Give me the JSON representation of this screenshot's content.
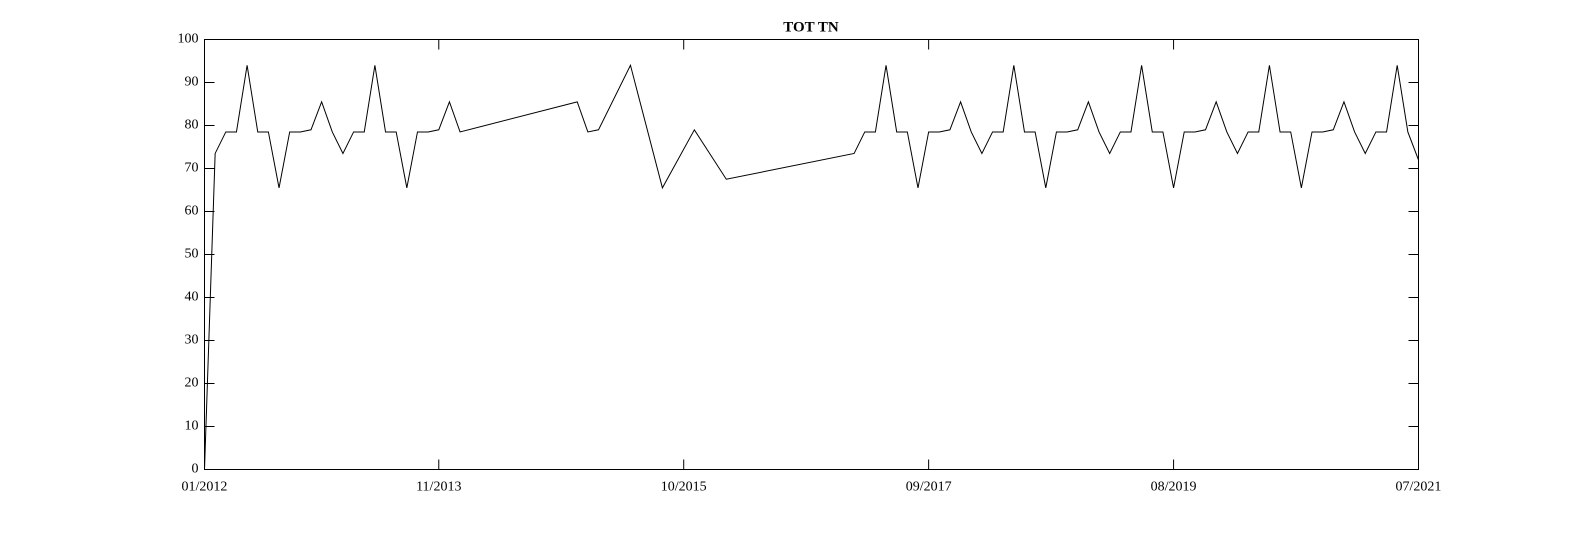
{
  "chart_data": {
    "type": "line",
    "title": "TOT TN",
    "x": [
      "2012-01",
      "2012-02",
      "2012-03",
      "2012-04",
      "2012-05",
      "2012-06",
      "2012-07",
      "2012-08",
      "2012-09",
      "2012-10",
      "2012-11",
      "2012-12",
      "2013-01",
      "2013-02",
      "2013-03",
      "2013-04",
      "2013-05",
      "2013-06",
      "2013-07",
      "2013-08",
      "2013-09",
      "2013-10",
      "2013-11",
      "2013-12",
      "2014-01",
      "2014-12",
      "2015-01",
      "2015-02",
      "2015-05",
      "2015-08",
      "2015-11",
      "2016-02",
      "2017-02",
      "2017-03",
      "2017-04",
      "2017-05",
      "2017-06",
      "2017-07",
      "2017-08",
      "2017-09",
      "2017-10",
      "2017-11",
      "2017-12",
      "2018-01",
      "2018-02",
      "2018-03",
      "2018-04",
      "2018-05",
      "2018-06",
      "2018-07",
      "2018-08",
      "2018-09",
      "2018-10",
      "2018-11",
      "2018-12",
      "2019-01",
      "2019-02",
      "2019-03",
      "2019-04",
      "2019-05",
      "2019-06",
      "2019-07",
      "2019-08",
      "2019-09",
      "2019-10",
      "2019-11",
      "2019-12",
      "2020-01",
      "2020-02",
      "2020-03",
      "2020-04",
      "2020-05",
      "2020-06",
      "2020-07",
      "2020-08",
      "2020-09",
      "2020-10",
      "2020-11",
      "2020-12",
      "2021-01",
      "2021-02",
      "2021-03",
      "2021-04",
      "2021-05",
      "2021-06",
      "2021-07"
    ],
    "series": [
      {
        "color": "#000000",
        "values": [
          0,
          73.5,
          78.5,
          78.5,
          94,
          78.5,
          78.5,
          65.5,
          78.5,
          78.5,
          79,
          85.5,
          78.5,
          73.5,
          78.5,
          78.5,
          94,
          78.5,
          78.5,
          65.5,
          78.5,
          78.5,
          79,
          85.5,
          78.5,
          85.5,
          78.5,
          79,
          94,
          65.5,
          79,
          67.5,
          73.5,
          78.5,
          78.5,
          94,
          78.5,
          78.5,
          65.5,
          78.5,
          78.5,
          79,
          85.5,
          78.5,
          73.5,
          78.5,
          78.5,
          94,
          78.5,
          78.5,
          65.5,
          78.5,
          78.5,
          79,
          85.5,
          78.5,
          73.5,
          78.5,
          78.5,
          94,
          78.5,
          78.5,
          65.5,
          78.5,
          78.5,
          79,
          85.5,
          78.5,
          73.5,
          78.5,
          78.5,
          94,
          78.5,
          78.5,
          65.5,
          78.5,
          78.5,
          79,
          85.5,
          78.5,
          73.5,
          78.5,
          78.5,
          94,
          78.5,
          72
        ]
      }
    ],
    "xlim": [
      "2012-01",
      "2021-07"
    ],
    "xticks": [
      {
        "value": "2012-01",
        "label": "01/2012"
      },
      {
        "value": "2013-11",
        "label": "11/2013"
      },
      {
        "value": "2015-10",
        "label": "10/2015"
      },
      {
        "value": "2017-09",
        "label": "09/2017"
      },
      {
        "value": "2019-08",
        "label": "08/2019"
      },
      {
        "value": "2021-07",
        "label": "07/2021"
      }
    ],
    "ylim": [
      0,
      100
    ],
    "yticks": [
      0,
      10,
      20,
      30,
      40,
      50,
      60,
      70,
      80,
      90,
      100
    ]
  }
}
